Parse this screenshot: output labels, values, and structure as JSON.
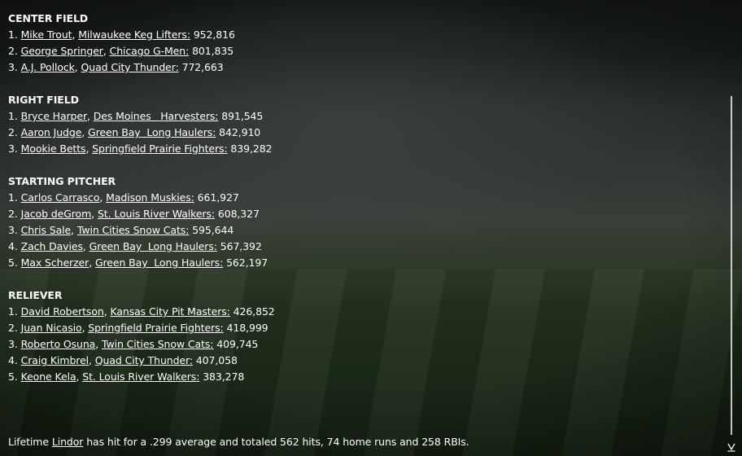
{
  "sections": [
    {
      "title": "CENTER FIELD",
      "rows": [
        {
          "rank": "1.",
          "player": "Mike Trout",
          "team": "Milwaukee Keg Lifters:",
          "votes": "952,816"
        },
        {
          "rank": "2.",
          "player": "George Springer",
          "team": "Chicago G-Men:",
          "votes": "801,835"
        },
        {
          "rank": "3.",
          "player": "A.J. Pollock",
          "team": "Quad City Thunder:",
          "votes": "772,663"
        }
      ]
    },
    {
      "title": "RIGHT FIELD",
      "rows": [
        {
          "rank": "1.",
          "player": "Bryce Harper",
          "team": "Des Moines   Harvesters:",
          "votes": "891,545"
        },
        {
          "rank": "2.",
          "player": "Aaron Judge",
          "team": "Green Bay  Long Haulers:",
          "votes": "842,910"
        },
        {
          "rank": "3.",
          "player": "Mookie Betts",
          "team": "Springfield Prairie Fighters:",
          "votes": "839,282"
        }
      ]
    },
    {
      "title": "STARTING PITCHER",
      "rows": [
        {
          "rank": "1.",
          "player": "Carlos Carrasco",
          "team": "Madison Muskies:",
          "votes": "661,927"
        },
        {
          "rank": "2.",
          "player": "Jacob deGrom",
          "team": "St. Louis River Walkers:",
          "votes": "608,327"
        },
        {
          "rank": "3.",
          "player": "Chris Sale",
          "team": "Twin Cities Snow Cats:",
          "votes": "595,644"
        },
        {
          "rank": "4.",
          "player": "Zach Davies",
          "team": "Green Bay  Long Haulers:",
          "votes": "567,392"
        },
        {
          "rank": "5.",
          "player": "Max Scherzer",
          "team": "Green Bay  Long Haulers:",
          "votes": "562,197"
        }
      ]
    },
    {
      "title": "RELIEVER",
      "rows": [
        {
          "rank": "1.",
          "player": "David Robertson",
          "team": "Kansas City Pit Masters:",
          "votes": "426,852"
        },
        {
          "rank": "2.",
          "player": "Juan Nicasio",
          "team": "Springfield Prairie Fighters:",
          "votes": "418,999"
        },
        {
          "rank": "3.",
          "player": "Roberto Osuna",
          "team": "Twin Cities Snow Cats:",
          "votes": "409,745"
        },
        {
          "rank": "4.",
          "player": "Craig Kimbrel",
          "team": "Quad City Thunder:",
          "votes": "407,058"
        },
        {
          "rank": "5.",
          "player": "Keone Kela",
          "team": "St. Louis River Walkers:",
          "votes": "383,278"
        }
      ]
    }
  ],
  "footer": {
    "prefix": "Lifetime ",
    "player_link": "Lindor",
    "suffix": " has hit for a .299 average and totaled 562 hits, 74 home runs and 258 RBIs."
  },
  "scroll_arrow_icon": "chevron-down-icon",
  "colors": {
    "text": "#ffffff"
  }
}
